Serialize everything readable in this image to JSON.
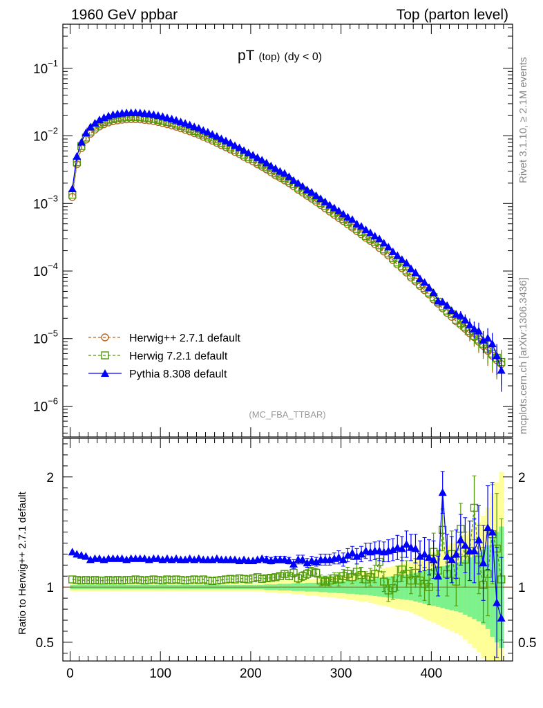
{
  "header": {
    "left": "1960 GeV ppbar",
    "right": "Top (parton level)"
  },
  "side": {
    "rivet": "Rivet 3.1.10, ≥ 2.1M events",
    "mcplots": "mcplots.cern.ch [arXiv:1306.3436]"
  },
  "plot": {
    "title_main": "pT",
    "title_sub": "(top)",
    "title_cut": "(dy < 0)",
    "analysis": "(MC_FBA_TTBAR)",
    "ratio_ylabel": "Ratio to Herwig++ 2.7.1 default"
  },
  "legend": [
    {
      "label": "Herwig++ 2.7.1 default",
      "color": "#b5651d",
      "marker": "circle",
      "dash": true
    },
    {
      "label": "Herwig 7.2.1 default",
      "color": "#4e9a06",
      "marker": "square",
      "dash": true
    },
    {
      "label": "Pythia 8.308 default",
      "color": "#0000ff",
      "marker": "triangle",
      "dash": false
    }
  ],
  "chart_data": {
    "type": "line",
    "x_ticks": [
      "0",
      "100",
      "200",
      "300",
      "400"
    ],
    "xlim": [
      -8,
      490
    ],
    "main": {
      "yscale": "log",
      "ylim": [
        3.5e-07,
        0.45
      ],
      "y_ticks": [
        {
          "mant": "10",
          "exp": "−1",
          "v": 0.1
        },
        {
          "mant": "10",
          "exp": "−2",
          "v": 0.01
        },
        {
          "mant": "10",
          "exp": "−3",
          "v": 0.001
        },
        {
          "mant": "10",
          "exp": "−4",
          "v": 0.0001
        },
        {
          "mant": "10",
          "exp": "−5",
          "v": 1e-05
        },
        {
          "mant": "10",
          "exp": "−6",
          "v": 1e-06
        }
      ]
    },
    "ratio": {
      "ylim": [
        0.33,
        2.35
      ],
      "y_ticks": [
        {
          "label": "0.5",
          "v": 0.5
        },
        {
          "label": "1",
          "v": 1
        },
        {
          "label": "2",
          "v": 2
        }
      ]
    },
    "x": [
      2.5,
      7.5,
      12.5,
      17.5,
      22.5,
      27.5,
      32.5,
      37.5,
      42.5,
      47.5,
      52.5,
      57.5,
      62.5,
      67.5,
      72.5,
      77.5,
      82.5,
      87.5,
      92.5,
      97.5,
      102.5,
      107.5,
      112.5,
      117.5,
      122.5,
      127.5,
      132.5,
      137.5,
      142.5,
      147.5,
      152.5,
      157.5,
      162.5,
      167.5,
      172.5,
      177.5,
      182.5,
      187.5,
      192.5,
      197.5,
      202.5,
      207.5,
      212.5,
      217.5,
      222.5,
      227.5,
      232.5,
      237.5,
      242.5,
      247.5,
      252.5,
      257.5,
      262.5,
      267.5,
      272.5,
      277.5,
      282.5,
      287.5,
      292.5,
      297.5,
      302.5,
      307.5,
      312.5,
      317.5,
      322.5,
      327.5,
      332.5,
      337.5,
      342.5,
      347.5,
      352.5,
      357.5,
      362.5,
      367.5,
      372.5,
      377.5,
      382.5,
      387.5,
      392.5,
      397.5,
      402.5,
      407.5,
      412.5,
      417.5,
      422.5,
      427.5,
      432.5,
      437.5,
      442.5,
      447.5,
      452.5,
      457.5,
      462.5,
      467.5,
      472.5,
      477.5
    ],
    "series": [
      {
        "name": "Herwig++ 2.7.1 default",
        "values": [
          0.00125,
          0.0038,
          0.0066,
          0.0088,
          0.0108,
          0.0124,
          0.0138,
          0.0149,
          0.0158,
          0.0165,
          0.017,
          0.0174,
          0.0176,
          0.0177,
          0.0177,
          0.0176,
          0.0173,
          0.017,
          0.0166,
          0.0161,
          0.0155,
          0.0149,
          0.0143,
          0.0137,
          0.013,
          0.0123,
          0.0117,
          0.011,
          0.0104,
          0.0097,
          0.0091,
          0.0085,
          0.0079,
          0.0073,
          0.0068,
          0.0063,
          0.0058,
          0.0054,
          0.0049,
          0.0045,
          0.0042,
          0.0038,
          0.0035,
          0.0032,
          0.0029,
          0.0026,
          0.0024,
          0.0022,
          0.002,
          0.0018,
          0.0016,
          0.00145,
          0.0013,
          0.00118,
          0.00106,
          0.00095,
          0.00085,
          0.00076,
          0.00068,
          0.00061,
          0.00055,
          0.00049,
          0.00044,
          0.00039,
          0.00035,
          0.00031,
          0.00028,
          0.00025,
          0.00022,
          0.000195,
          0.00017,
          0.000145,
          0.000125,
          0.00011,
          9.5e-05,
          8e-05,
          7e-05,
          6e-05,
          5.2e-05,
          4.5e-05,
          3.8e-05,
          3.3e-05,
          2.8e-05,
          2.4e-05,
          2.1e-05,
          1.8e-05,
          1.6e-05,
          1.4e-05,
          1.2e-05,
          1.05e-05,
          9e-06,
          7.8e-06,
          6.6e-06,
          5.6e-06,
          4.8e-06,
          4.2e-06
        ],
        "ratio": [
          1,
          1,
          1,
          1,
          1,
          1,
          1,
          1,
          1,
          1,
          1,
          1,
          1,
          1,
          1,
          1,
          1,
          1,
          1,
          1,
          1,
          1,
          1,
          1,
          1,
          1,
          1,
          1,
          1,
          1,
          1,
          1,
          1,
          1,
          1,
          1,
          1,
          1,
          1,
          1,
          1,
          1,
          1,
          1,
          1,
          1,
          1,
          1,
          1,
          1,
          1,
          1,
          1,
          1,
          1,
          1,
          1,
          1,
          1,
          1,
          1,
          1,
          1,
          1,
          1,
          1,
          1,
          1,
          1,
          1,
          1,
          1,
          1,
          1,
          1,
          1,
          1,
          1,
          1,
          1,
          1,
          1,
          1,
          1,
          1,
          1,
          1,
          1,
          1,
          1,
          1,
          1,
          1,
          1,
          1,
          1
        ],
        "ratio_band": [
          0.02,
          0.02,
          0.02,
          0.02,
          0.02,
          0.02,
          0.02,
          0.02,
          0.02,
          0.02,
          0.02,
          0.02,
          0.02,
          0.02,
          0.02,
          0.02,
          0.02,
          0.02,
          0.02,
          0.02,
          0.02,
          0.02,
          0.02,
          0.02,
          0.02,
          0.02,
          0.02,
          0.02,
          0.02,
          0.02,
          0.02,
          0.02,
          0.02,
          0.02,
          0.02,
          0.02,
          0.02,
          0.02,
          0.02,
          0.02,
          0.02,
          0.02,
          0.02,
          0.025,
          0.025,
          0.025,
          0.03,
          0.03,
          0.03,
          0.035,
          0.035,
          0.035,
          0.04,
          0.04,
          0.04,
          0.045,
          0.045,
          0.05,
          0.05,
          0.055,
          0.055,
          0.06,
          0.06,
          0.065,
          0.07,
          0.07,
          0.075,
          0.08,
          0.085,
          0.09,
          0.095,
          0.1,
          0.105,
          0.11,
          0.115,
          0.12,
          0.13,
          0.14,
          0.15,
          0.16,
          0.17,
          0.18,
          0.19,
          0.2,
          0.21,
          0.22,
          0.23,
          0.25,
          0.27,
          0.29,
          0.31,
          0.34,
          0.38,
          0.45,
          0.5,
          0.55
        ],
        "color": "#b5651d"
      },
      {
        "name": "Herwig 7.2.1 default",
        "values": [
          0.00135,
          0.00408,
          0.0071,
          0.00945,
          0.01159,
          0.01331,
          0.01481,
          0.01599,
          0.01696,
          0.01771,
          0.01825,
          0.01868,
          0.01889,
          0.019,
          0.019,
          0.01889,
          0.01857,
          0.01825,
          0.01782,
          0.01728,
          0.01664,
          0.01599,
          0.01535,
          0.01471,
          0.01396,
          0.0132,
          0.01256,
          0.01181,
          0.01116,
          0.01042,
          0.00977,
          0.00912,
          0.00848,
          0.00784,
          0.0073,
          0.00676,
          0.00623,
          0.0058,
          0.00526,
          0.00483,
          0.00451,
          0.00408,
          0.00376,
          0.00343,
          0.00311,
          0.00279,
          0.00258,
          0.00236,
          0.00215,
          0.00193,
          0.00172,
          0.00156,
          0.0014,
          0.00127,
          0.00114,
          0.00102,
          0.00091,
          0.00082,
          0.00073,
          0.00066,
          0.00059,
          0.00053,
          0.00047,
          0.00042,
          0.00038,
          0.00033,
          0.0003,
          0.00027,
          0.00024,
          0.000209,
          0.000182,
          0.000156,
          0.000134,
          0.000118,
          0.000102,
          8.6e-05,
          7.5e-05,
          6.4e-05,
          5.6e-05,
          4.8e-05,
          4.1e-05,
          3.5e-05,
          3e-05,
          2.6e-05,
          2.3e-05,
          1.9e-05,
          1.7e-05,
          1.5e-05,
          1.3e-05,
          1.1e-05,
          9.7e-06,
          8.4e-06,
          7.1e-06,
          6e-06,
          5.2e-06,
          4.5e-06
        ],
        "ratio": [
          1.07,
          1.065,
          1.06,
          1.065,
          1.06,
          1.065,
          1.06,
          1.06,
          1.065,
          1.06,
          1.065,
          1.06,
          1.065,
          1.065,
          1.07,
          1.065,
          1.06,
          1.065,
          1.07,
          1.065,
          1.06,
          1.07,
          1.065,
          1.07,
          1.065,
          1.06,
          1.065,
          1.07,
          1.065,
          1.07,
          1.06,
          1.055,
          1.06,
          1.065,
          1.07,
          1.075,
          1.07,
          1.08,
          1.075,
          1.07,
          1.08,
          1.09,
          1.075,
          1.08,
          1.085,
          1.09,
          1.1,
          1.12,
          1.1,
          1.13,
          1.08,
          1.1,
          1.12,
          1.14,
          1.13,
          1.06,
          1.05,
          1.06,
          1.08,
          1.07,
          1.1,
          1.12,
          1.09,
          1.14,
          1.11,
          1.07,
          1.09,
          1.12,
          1.23,
          1.05,
          0.97,
          0.99,
          1.08,
          1.16,
          1.12,
          1.06,
          1.13,
          1.06,
          1.03,
          1.0,
          1.32,
          1.15,
          1.52,
          1.12,
          1.3,
          1.05,
          1.53,
          1.25,
          1.33,
          1.72,
          1.25,
          1.02,
          1.12,
          1.48,
          1.35,
          1.07
        ],
        "ratio_err": [
          0.02,
          0.02,
          0.02,
          0.02,
          0.02,
          0.02,
          0.02,
          0.02,
          0.02,
          0.02,
          0.02,
          0.02,
          0.02,
          0.02,
          0.02,
          0.02,
          0.02,
          0.02,
          0.02,
          0.02,
          0.02,
          0.02,
          0.02,
          0.02,
          0.02,
          0.02,
          0.02,
          0.02,
          0.02,
          0.02,
          0.02,
          0.02,
          0.02,
          0.02,
          0.02,
          0.02,
          0.02,
          0.02,
          0.02,
          0.02,
          0.02,
          0.02,
          0.02,
          0.03,
          0.03,
          0.03,
          0.03,
          0.03,
          0.03,
          0.04,
          0.04,
          0.04,
          0.04,
          0.04,
          0.04,
          0.05,
          0.05,
          0.05,
          0.05,
          0.06,
          0.06,
          0.06,
          0.06,
          0.07,
          0.07,
          0.07,
          0.08,
          0.08,
          0.09,
          0.09,
          0.1,
          0.1,
          0.11,
          0.11,
          0.12,
          0.12,
          0.13,
          0.14,
          0.15,
          0.16,
          0.17,
          0.18,
          0.19,
          0.2,
          0.21,
          0.22,
          0.23,
          0.25,
          0.27,
          0.29,
          0.31,
          0.34,
          0.38,
          0.45,
          0.5,
          0.55
        ],
        "color": "#4e9a06"
      },
      {
        "name": "Pythia 8.308 default",
        "values": [
          0.00165,
          0.005,
          0.0081,
          0.0111,
          0.0136,
          0.0155,
          0.0173,
          0.0187,
          0.0198,
          0.0207,
          0.0213,
          0.0217,
          0.022,
          0.0221,
          0.0221,
          0.022,
          0.0216,
          0.0212,
          0.0207,
          0.0201,
          0.0194,
          0.0186,
          0.0179,
          0.0171,
          0.0162,
          0.0154,
          0.0146,
          0.0137,
          0.013,
          0.0121,
          0.0114,
          0.0106,
          0.0099,
          0.0091,
          0.0085,
          0.0079,
          0.0072,
          0.0067,
          0.0061,
          0.0056,
          0.0052,
          0.0048,
          0.0044,
          0.004,
          0.0036,
          0.0033,
          0.003,
          0.0028,
          0.0025,
          0.0022,
          0.002,
          0.0018,
          0.0016,
          0.00147,
          0.00131,
          0.00118,
          0.00106,
          0.00095,
          0.00086,
          0.00078,
          0.0007,
          0.00063,
          0.00058,
          0.0005,
          0.00046,
          0.00041,
          0.00037,
          0.00033,
          0.0003,
          0.00026,
          0.000227,
          0.000194,
          0.00017,
          0.000149,
          0.000132,
          0.000109,
          9.5e-05,
          7.7e-05,
          6.8e-05,
          5.7e-05,
          4.8e-05,
          3.6e-05,
          3.5e-05,
          3.1e-05,
          2.6e-05,
          2.3e-05,
          2.2e-05,
          1.9e-05,
          1.6e-05,
          1.4e-05,
          1.3e-05,
          9.5e-06,
          1.02e-05,
          8.4e-06,
          5.6e-06,
          3.4e-06
        ],
        "ratio": [
          1.32,
          1.3,
          1.29,
          1.28,
          1.25,
          1.26,
          1.26,
          1.25,
          1.26,
          1.26,
          1.26,
          1.26,
          1.25,
          1.26,
          1.26,
          1.26,
          1.26,
          1.25,
          1.26,
          1.26,
          1.25,
          1.26,
          1.25,
          1.26,
          1.25,
          1.25,
          1.26,
          1.25,
          1.26,
          1.25,
          1.25,
          1.25,
          1.26,
          1.25,
          1.25,
          1.25,
          1.25,
          1.24,
          1.25,
          1.24,
          1.24,
          1.25,
          1.26,
          1.25,
          1.24,
          1.25,
          1.25,
          1.25,
          1.24,
          1.21,
          1.25,
          1.25,
          1.22,
          1.24,
          1.23,
          1.25,
          1.25,
          1.25,
          1.26,
          1.27,
          1.25,
          1.29,
          1.31,
          1.28,
          1.3,
          1.33,
          1.32,
          1.33,
          1.33,
          1.32,
          1.33,
          1.34,
          1.36,
          1.35,
          1.39,
          1.36,
          1.35,
          1.28,
          1.3,
          1.27,
          1.25,
          1.1,
          1.86,
          1.28,
          1.25,
          1.3,
          1.43,
          1.38,
          1.33,
          1.33,
          1.43,
          1.22,
          1.54,
          1.5,
          0.86,
          0.72
        ],
        "ratio_err": [
          0.02,
          0.02,
          0.02,
          0.02,
          0.02,
          0.02,
          0.02,
          0.02,
          0.02,
          0.02,
          0.02,
          0.02,
          0.02,
          0.02,
          0.02,
          0.02,
          0.02,
          0.02,
          0.02,
          0.02,
          0.02,
          0.02,
          0.02,
          0.02,
          0.02,
          0.02,
          0.02,
          0.02,
          0.02,
          0.02,
          0.02,
          0.02,
          0.02,
          0.02,
          0.02,
          0.02,
          0.02,
          0.02,
          0.02,
          0.02,
          0.02,
          0.02,
          0.02,
          0.03,
          0.03,
          0.03,
          0.03,
          0.03,
          0.03,
          0.04,
          0.04,
          0.04,
          0.04,
          0.04,
          0.04,
          0.05,
          0.05,
          0.05,
          0.05,
          0.06,
          0.06,
          0.06,
          0.06,
          0.07,
          0.07,
          0.07,
          0.08,
          0.08,
          0.09,
          0.09,
          0.1,
          0.1,
          0.11,
          0.11,
          0.12,
          0.12,
          0.13,
          0.14,
          0.15,
          0.16,
          0.17,
          0.18,
          0.19,
          0.2,
          0.21,
          0.22,
          0.23,
          0.25,
          0.27,
          0.29,
          0.31,
          0.34,
          0.38,
          0.45,
          0.5,
          0.55
        ],
        "color": "#0000ff"
      }
    ]
  }
}
